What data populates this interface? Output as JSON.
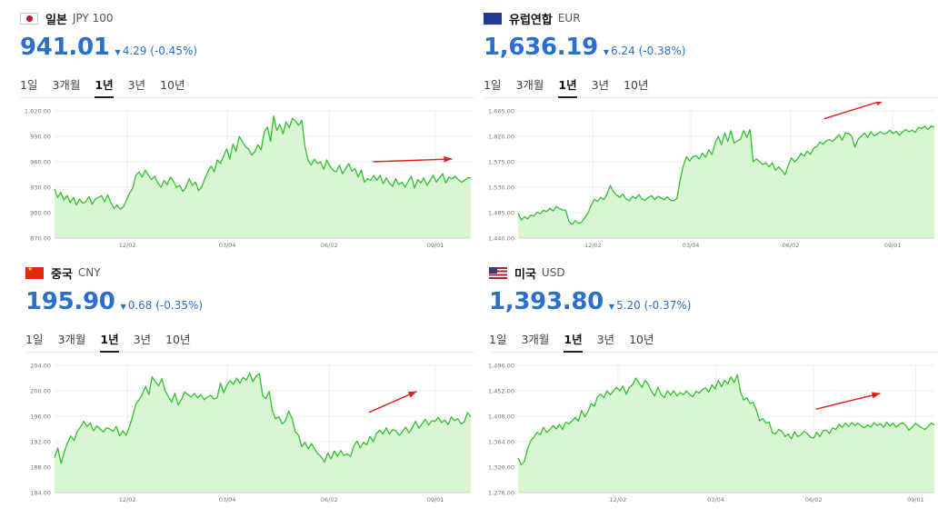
{
  "tabs": [
    "1일",
    "3개월",
    "1년",
    "3년",
    "10년"
  ],
  "active_tab": "1년",
  "colors": {
    "accent": "#2b6fce",
    "line": "#31c22d",
    "area": "#d9f5d3",
    "arrow": "#e0201b"
  },
  "panels": [
    {
      "flag": "jp-flag-icon",
      "country": "일본",
      "code": "JPY 100",
      "price": "941.01",
      "change": "4.29 (-0.45%)",
      "chart_data": {
        "type": "area",
        "yticks": [
          "1,020.00",
          "990.00",
          "960.00",
          "930.00",
          "900.00",
          "870.00"
        ],
        "ylim": [
          870,
          1020
        ],
        "xticks": [
          "12/02",
          "03/04",
          "06/02",
          "09/01"
        ],
        "x_tick_positions": [
          0.175,
          0.415,
          0.66,
          0.915
        ],
        "values": [
          928,
          918,
          924,
          915,
          920,
          912,
          918,
          909,
          916,
          911,
          913,
          919,
          910,
          916,
          918,
          920,
          913,
          921,
          912,
          905,
          909,
          904,
          907,
          915,
          923,
          929,
          944,
          948,
          942,
          950,
          944,
          939,
          943,
          935,
          930,
          938,
          933,
          942,
          937,
          930,
          932,
          925,
          930,
          940,
          932,
          936,
          926,
          930,
          940,
          948,
          955,
          948,
          962,
          958,
          967,
          975,
          963,
          981,
          972,
          990,
          984,
          978,
          975,
          968,
          972,
          980,
          974,
          995,
          1001,
          984,
          1014,
          997,
          1004,
          993,
          1007,
          1000,
          1011,
          1008,
          1003,
          1009,
          978,
          962,
          956,
          963,
          958,
          960,
          951,
          962,
          955,
          950,
          948,
          956,
          946,
          952,
          958,
          949,
          952,
          942,
          950,
          936,
          940,
          938,
          944,
          938,
          944,
          934,
          941,
          935,
          931,
          940,
          933,
          936,
          930,
          937,
          943,
          929,
          939,
          935,
          941,
          932,
          938,
          944,
          936,
          941,
          946,
          935,
          942,
          940,
          943,
          939,
          936,
          938,
          941,
          941
        ]
      },
      "arrow": [
        [
          0.765,
          0.4
        ],
        [
          0.955,
          0.378
        ]
      ]
    },
    {
      "flag": "eu-flag-icon",
      "country": "유럽연합",
      "code": "EUR",
      "price": "1,636.19",
      "change": "6.24 (-0.38%)",
      "chart_data": {
        "type": "area",
        "yticks": [
          "1,665.00",
          "1,620.00",
          "1,575.00",
          "1,530.00",
          "1,485.00",
          "1,440.00"
        ],
        "ylim": [
          1440,
          1665
        ],
        "xticks": [
          "12/02",
          "03/04",
          "06/02",
          "09/01"
        ],
        "x_tick_positions": [
          0.18,
          0.415,
          0.655,
          0.9
        ],
        "values": [
          1484,
          1472,
          1478,
          1474,
          1481,
          1479,
          1486,
          1483,
          1489,
          1487,
          1493,
          1488,
          1496,
          1492,
          1490,
          1489,
          1470,
          1464,
          1471,
          1466,
          1468,
          1476,
          1484,
          1498,
          1509,
          1505,
          1512,
          1508,
          1518,
          1533,
          1522,
          1516,
          1512,
          1518,
          1509,
          1506,
          1514,
          1510,
          1517,
          1509,
          1507,
          1512,
          1515,
          1508,
          1514,
          1511,
          1508,
          1513,
          1507,
          1506,
          1510,
          1543,
          1568,
          1584,
          1576,
          1584,
          1586,
          1580,
          1590,
          1583,
          1596,
          1588,
          1608,
          1620,
          1605,
          1626,
          1611,
          1630,
          1608,
          1612,
          1615,
          1630,
          1618,
          1632,
          1575,
          1580,
          1575,
          1570,
          1573,
          1566,
          1573,
          1560,
          1566,
          1560,
          1552,
          1568,
          1582,
          1575,
          1580,
          1590,
          1585,
          1594,
          1588,
          1599,
          1602,
          1610,
          1606,
          1612,
          1614,
          1611,
          1617,
          1623,
          1613,
          1626,
          1625,
          1620,
          1601,
          1615,
          1620,
          1626,
          1618,
          1628,
          1621,
          1624,
          1628,
          1624,
          1626,
          1631,
          1625,
          1629,
          1622,
          1628,
          1632,
          1628,
          1631,
          1627,
          1636,
          1634,
          1638,
          1632,
          1638,
          1636
        ]
      },
      "arrow": [
        [
          0.735,
          0.062
        ],
        [
          0.88,
          -0.085
        ]
      ]
    },
    {
      "flag": "cn-flag-icon",
      "country": "중국",
      "code": "CNY",
      "price": "195.90",
      "change": "0.68 (-0.35%)",
      "chart_data": {
        "type": "area",
        "yticks": [
          "204.00",
          "200.00",
          "196.00",
          "192.00",
          "188.00",
          "184.00"
        ],
        "ylim": [
          184,
          204
        ],
        "xticks": [
          "12/02",
          "03/04",
          "06/02",
          "09/01"
        ],
        "x_tick_positions": [
          0.175,
          0.415,
          0.66,
          0.915
        ],
        "values": [
          189.5,
          191.0,
          188.6,
          190.4,
          191.8,
          192.9,
          192.2,
          193.6,
          194.3,
          195.2,
          194.4,
          194.9,
          193.7,
          194.5,
          194.0,
          193.5,
          194.2,
          194.0,
          193.6,
          194.4,
          192.9,
          193.7,
          193.0,
          194.3,
          196.0,
          197.9,
          198.6,
          199.5,
          200.7,
          199.4,
          202.2,
          201.4,
          200.8,
          201.9,
          200.0,
          199.1,
          198.2,
          199.6,
          197.8,
          198.6,
          199.8,
          199.4,
          199.0,
          199.6,
          198.9,
          199.4,
          198.6,
          199.0,
          199.3,
          198.7,
          198.9,
          201.2,
          199.7,
          200.9,
          201.6,
          201.0,
          202.0,
          201.2,
          202.1,
          201.7,
          202.8,
          201.4,
          202.3,
          202.7,
          199.2,
          198.8,
          199.9,
          196.8,
          195.6,
          195.9,
          194.8,
          195.3,
          196.8,
          195.7,
          193.6,
          193.0,
          191.2,
          191.9,
          190.9,
          191.7,
          190.8,
          190.1,
          189.6,
          188.8,
          190.2,
          189.3,
          190.5,
          189.7,
          190.6,
          189.8,
          190.1,
          189.7,
          191.3,
          192.1,
          191.0,
          191.9,
          191.5,
          192.8,
          192.0,
          193.3,
          193.8,
          193.2,
          194.2,
          193.2,
          193.9,
          193.7,
          193.0,
          193.6,
          194.3,
          193.4,
          194.2,
          195.2,
          194.1,
          194.8,
          195.5,
          194.6,
          195.3,
          195.2,
          195.8,
          195.0,
          195.4,
          194.7,
          195.9,
          195.3,
          195.6,
          194.8,
          195.1,
          196.6,
          195.9
        ]
      },
      "arrow": [
        [
          0.755,
          0.37
        ],
        [
          0.87,
          0.205
        ]
      ]
    },
    {
      "flag": "us-flag-icon",
      "country": "미국",
      "code": "USD",
      "price": "1,393.80",
      "change": "5.20 (-0.37%)",
      "chart_data": {
        "type": "area",
        "yticks": [
          "1,496.00",
          "1,452.00",
          "1,408.00",
          "1,364.00",
          "1,320.00",
          "1,276.00"
        ],
        "ylim": [
          1276,
          1496
        ],
        "xticks": [
          "12/02",
          "03/04",
          "06/02",
          "09/01"
        ],
        "x_tick_positions": [
          0.24,
          0.475,
          0.71,
          0.955
        ],
        "values": [
          1336,
          1324,
          1330,
          1352,
          1366,
          1372,
          1380,
          1376,
          1389,
          1380,
          1385,
          1392,
          1386,
          1394,
          1385,
          1398,
          1395,
          1400,
          1406,
          1399,
          1418,
          1407,
          1416,
          1430,
          1425,
          1442,
          1446,
          1440,
          1452,
          1445,
          1452,
          1458,
          1452,
          1460,
          1446,
          1458,
          1462,
          1474,
          1466,
          1458,
          1470,
          1463,
          1451,
          1443,
          1458,
          1446,
          1440,
          1452,
          1445,
          1452,
          1443,
          1449,
          1445,
          1452,
          1445,
          1442,
          1451,
          1448,
          1454,
          1457,
          1450,
          1462,
          1455,
          1470,
          1459,
          1470,
          1464,
          1476,
          1466,
          1480,
          1450,
          1436,
          1440,
          1430,
          1432,
          1418,
          1400,
          1404,
          1396,
          1398,
          1380,
          1377,
          1385,
          1382,
          1373,
          1377,
          1369,
          1381,
          1373,
          1376,
          1382,
          1378,
          1372,
          1370,
          1380,
          1373,
          1383,
          1384,
          1378,
          1388,
          1385,
          1394,
          1389,
          1396,
          1390,
          1397,
          1392,
          1396,
          1391,
          1388,
          1393,
          1389,
          1397,
          1392,
          1395,
          1389,
          1398,
          1391,
          1396,
          1389,
          1394,
          1397,
          1392,
          1384,
          1389,
          1396,
          1392,
          1388,
          1385,
          1390,
          1396,
          1393
        ]
      },
      "arrow": [
        [
          0.715,
          0.345
        ],
        [
          0.87,
          0.22
        ]
      ]
    }
  ]
}
